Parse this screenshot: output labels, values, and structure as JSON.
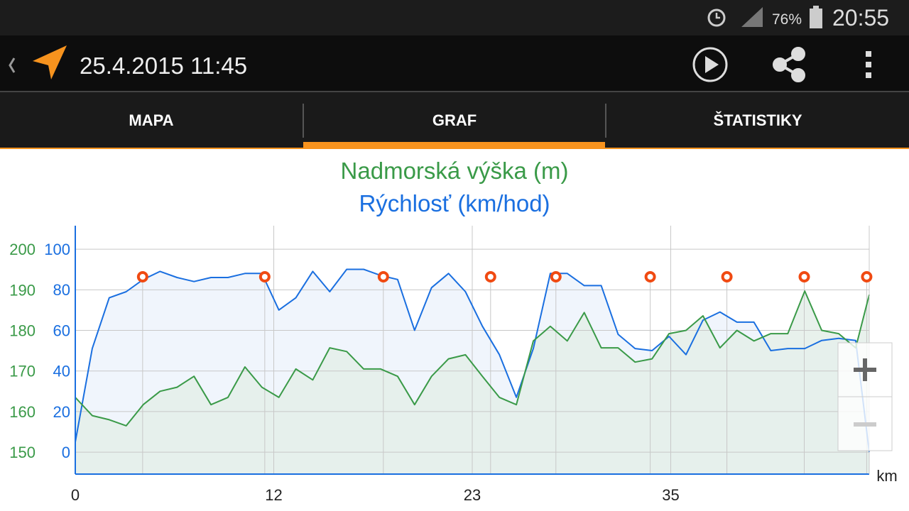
{
  "status_bar": {
    "battery": "76%",
    "time": "20:55"
  },
  "app_bar": {
    "title": "25.4.2015 11:45"
  },
  "tabs": [
    "MAPA",
    "GRAF",
    "ŠTATISTIKY"
  ],
  "chart_data": {
    "type": "line",
    "title": "Nadmorská výška (m)",
    "subtitle": "Rýchlosť (km/hod)",
    "x_label": "km",
    "x": [
      0,
      1,
      2,
      3,
      4,
      5,
      6,
      7,
      8,
      9,
      10,
      11,
      12,
      13,
      14,
      15,
      16,
      17,
      18,
      19,
      20,
      21,
      22,
      23,
      24,
      25,
      26,
      27,
      28,
      29,
      30,
      31,
      32,
      33,
      34,
      35,
      36,
      37,
      38,
      39,
      40,
      41,
      42,
      43,
      44,
      45,
      46,
      46.8
    ],
    "series": [
      {
        "name": "Nadmorská výška (m)",
        "color": "#3a9a48",
        "fill": "#e4efe9",
        "values": [
          163.5,
          159,
          158,
          156.5,
          161.7,
          165,
          166,
          168.7,
          161.7,
          163.5,
          171,
          166,
          163.5,
          170.5,
          167.8,
          175.7,
          174.8,
          170.5,
          170.5,
          168.7,
          161.7,
          168.7,
          173,
          174,
          168.7,
          163.5,
          161.7,
          177.4,
          181,
          177.4,
          184.4,
          175.7,
          175.7,
          172.2,
          173,
          179.2,
          180,
          183.6,
          175.7,
          180,
          177.4,
          179.2,
          179.2,
          189.7,
          180,
          179.2,
          175.7,
          188.8
        ]
      },
      {
        "name": "Rýchlosť (km/hod)",
        "color": "#1a6fe0",
        "fill": "#edf3fc",
        "axis": "y2",
        "values": [
          5,
          51,
          76,
          79,
          85,
          89,
          86,
          84,
          86,
          86,
          88,
          88,
          70,
          76,
          89,
          79,
          90,
          90,
          87,
          85,
          60,
          81,
          88,
          79,
          62,
          48,
          27,
          51,
          88,
          88,
          82,
          82,
          58,
          51,
          50,
          57,
          48,
          65,
          69,
          64,
          64,
          50,
          51,
          51,
          55,
          56,
          55,
          0
        ]
      }
    ],
    "waypoints": [
      3.97,
      11.17,
      18.16,
      24.48,
      28.33,
      33.89,
      38.41,
      42.97,
      46.65
    ],
    "waypoint_color": "#f04a12",
    "xlim": [
      0,
      46.8
    ],
    "xticks": [
      0,
      {
        "value": 11.7,
        "label": "12"
      },
      {
        "value": 23.4,
        "label": "23"
      },
      {
        "value": 35.1,
        "label": "35"
      }
    ],
    "ylim": [
      144.6,
      205.8
    ],
    "yticks": [
      150,
      160,
      170,
      180,
      190,
      200
    ],
    "y2lim": [
      -10.8,
      111.5
    ],
    "y2ticks": [
      0,
      20,
      40,
      60,
      80,
      100
    ],
    "grid": true
  }
}
